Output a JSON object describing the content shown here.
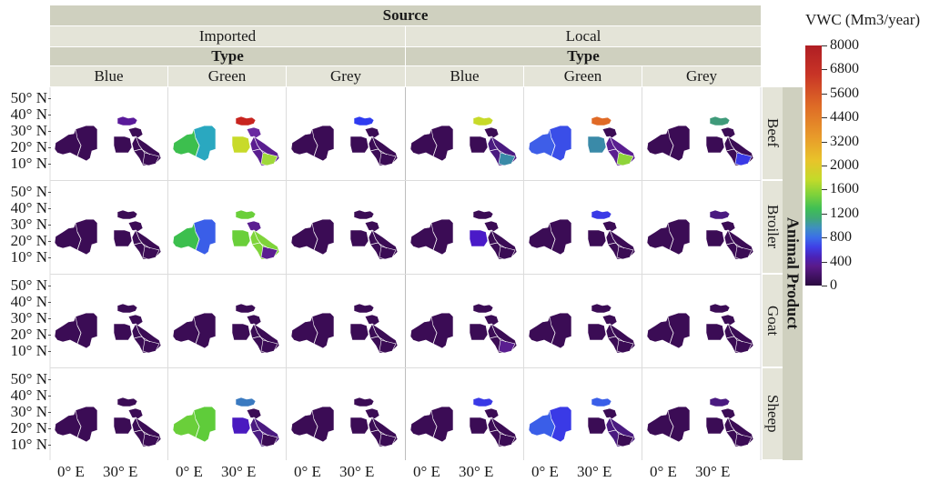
{
  "chart_data": {
    "type": "heatmap",
    "header_source_label": "Source",
    "source_groups": [
      "Imported",
      "Local"
    ],
    "type_label": "Type",
    "type_categories": [
      "Blue",
      "Green",
      "Grey"
    ],
    "row_group_label": "Animal Product",
    "rows": [
      "Beef",
      "Broiler",
      "Goat",
      "Sheep"
    ],
    "y_ticks": [
      "50° N",
      "40° N",
      "30° N",
      "20° N",
      "10° N"
    ],
    "x_ticks": [
      "0° E",
      "30° E"
    ],
    "legend_title": "VWC (Mm3/year)",
    "legend_ticks": [
      "8000",
      "6800",
      "5600",
      "4400",
      "3200",
      "2000",
      "1600",
      "1200",
      "800",
      "400",
      "0"
    ],
    "colors": {
      "base": "#3b0c55",
      "scale_min": "#2a0a3f",
      "scale_max": "#b01e24"
    },
    "panels": [
      {
        "source": "Imported",
        "type": "Blue",
        "row": "Beef",
        "west": "#3b0c55",
        "east": "#3b0c55",
        "north": "#5a1a9a",
        "peninsula": "#3b0c55",
        "ne": "#3b0c55",
        "sw": "#3b0c55",
        "se": "#3b0c55"
      },
      {
        "source": "Imported",
        "type": "Green",
        "row": "Beef",
        "west": "#3cbf4e",
        "east": "#2aa8c0",
        "north": "#c8241f",
        "peninsula": "#5a1e90",
        "ne": "#6a2aa0",
        "sw": "#c8da2a",
        "se": "#9fd83a"
      },
      {
        "source": "Imported",
        "type": "Grey",
        "row": "Beef",
        "west": "#3b0c55",
        "east": "#3b0c55",
        "north": "#2f3cf0",
        "peninsula": "#3b0c55",
        "ne": "#3b0c55",
        "sw": "#3b0c55",
        "se": "#3b0c55"
      },
      {
        "source": "Local",
        "type": "Blue",
        "row": "Beef",
        "west": "#3b0c55",
        "east": "#3b0c55",
        "north": "#c8da2a",
        "peninsula": "#4a1a80",
        "ne": "#3b0c55",
        "sw": "#3b0c55",
        "se": "#3a8aa8"
      },
      {
        "source": "Local",
        "type": "Green",
        "row": "Beef",
        "west": "#3e5ee8",
        "east": "#3a4ee8",
        "north": "#e06a26",
        "peninsula": "#5a1e90",
        "ne": "#3b0c55",
        "sw": "#3a8aa8",
        "se": "#8fd43a"
      },
      {
        "source": "Local",
        "type": "Grey",
        "row": "Beef",
        "west": "#3b0c55",
        "east": "#3b0c55",
        "north": "#3f9a7a",
        "peninsula": "#3b0c55",
        "ne": "#3b0c55",
        "sw": "#3b0c55",
        "se": "#3a3ae6"
      },
      {
        "source": "Imported",
        "type": "Blue",
        "row": "Broiler",
        "west": "#3b0c55",
        "east": "#3b0c55",
        "north": "#3b0c55",
        "peninsula": "#3b0c55",
        "ne": "#3b0c55",
        "sw": "#3b0c55",
        "se": "#3b0c55"
      },
      {
        "source": "Imported",
        "type": "Green",
        "row": "Broiler",
        "west": "#3cbf4e",
        "east": "#3a5ee8",
        "north": "#6acf3a",
        "peninsula": "#7fd43a",
        "ne": "#5a1e90",
        "sw": "#6acf3a",
        "se": "#5a1e90"
      },
      {
        "source": "Imported",
        "type": "Grey",
        "row": "Broiler",
        "west": "#3b0c55",
        "east": "#3b0c55",
        "north": "#3b0c55",
        "peninsula": "#3b0c55",
        "ne": "#3b0c55",
        "sw": "#3b0c55",
        "se": "#3b0c55"
      },
      {
        "source": "Local",
        "type": "Blue",
        "row": "Broiler",
        "west": "#3b0c55",
        "east": "#3b0c55",
        "north": "#3b0c55",
        "peninsula": "#3b0c55",
        "ne": "#3b0c55",
        "sw": "#4a1ac8",
        "se": "#3b0c55"
      },
      {
        "source": "Local",
        "type": "Green",
        "row": "Broiler",
        "west": "#3b0c55",
        "east": "#3b0c55",
        "north": "#3a3ae6",
        "peninsula": "#3b0c55",
        "ne": "#3b0c55",
        "sw": "#3b0c55",
        "se": "#3b0c55"
      },
      {
        "source": "Local",
        "type": "Grey",
        "row": "Broiler",
        "west": "#3b0c55",
        "east": "#3b0c55",
        "north": "#4a1a80",
        "peninsula": "#3b0c55",
        "ne": "#3b0c55",
        "sw": "#3b0c55",
        "se": "#3b0c55"
      },
      {
        "source": "Imported",
        "type": "Blue",
        "row": "Goat",
        "west": "#3b0c55",
        "east": "#3b0c55",
        "north": "#3b0c55",
        "peninsula": "#3b0c55",
        "ne": "#3b0c55",
        "sw": "#3b0c55",
        "se": "#3b0c55"
      },
      {
        "source": "Imported",
        "type": "Green",
        "row": "Goat",
        "west": "#3b0c55",
        "east": "#3b0c55",
        "north": "#3b0c55",
        "peninsula": "#3b0c55",
        "ne": "#3b0c55",
        "sw": "#3b0c55",
        "se": "#3b0c55"
      },
      {
        "source": "Imported",
        "type": "Grey",
        "row": "Goat",
        "west": "#3b0c55",
        "east": "#3b0c55",
        "north": "#3b0c55",
        "peninsula": "#3b0c55",
        "ne": "#3b0c55",
        "sw": "#3b0c55",
        "se": "#3b0c55"
      },
      {
        "source": "Local",
        "type": "Blue",
        "row": "Goat",
        "west": "#3b0c55",
        "east": "#3b0c55",
        "north": "#3b0c55",
        "peninsula": "#3b0c55",
        "ne": "#3b0c55",
        "sw": "#3b0c55",
        "se": "#5a1e90"
      },
      {
        "source": "Local",
        "type": "Green",
        "row": "Goat",
        "west": "#3b0c55",
        "east": "#3b0c55",
        "north": "#3b0c55",
        "peninsula": "#3b0c55",
        "ne": "#3b0c55",
        "sw": "#3b0c55",
        "se": "#3b0c55"
      },
      {
        "source": "Local",
        "type": "Grey",
        "row": "Goat",
        "west": "#3b0c55",
        "east": "#3b0c55",
        "north": "#3b0c55",
        "peninsula": "#3b0c55",
        "ne": "#3b0c55",
        "sw": "#3b0c55",
        "se": "#3b0c55"
      },
      {
        "source": "Imported",
        "type": "Blue",
        "row": "Sheep",
        "west": "#3b0c55",
        "east": "#3b0c55",
        "north": "#3b0c55",
        "peninsula": "#3b0c55",
        "ne": "#3b0c55",
        "sw": "#3b0c55",
        "se": "#3b0c55"
      },
      {
        "source": "Imported",
        "type": "Green",
        "row": "Sheep",
        "west": "#6acf3a",
        "east": "#5fcc3a",
        "north": "#3a7ac0",
        "peninsula": "#4a1a80",
        "ne": "#3b0c55",
        "sw": "#4a1ac0",
        "se": "#3b0c55"
      },
      {
        "source": "Imported",
        "type": "Grey",
        "row": "Sheep",
        "west": "#3b0c55",
        "east": "#3b0c55",
        "north": "#3b0c55",
        "peninsula": "#3b0c55",
        "ne": "#3b0c55",
        "sw": "#3b0c55",
        "se": "#3b0c55"
      },
      {
        "source": "Local",
        "type": "Blue",
        "row": "Sheep",
        "west": "#3b0c55",
        "east": "#3b0c55",
        "north": "#3a3ae6",
        "peninsula": "#3b0c55",
        "ne": "#3b0c55",
        "sw": "#3b0c55",
        "se": "#3b0c55"
      },
      {
        "source": "Local",
        "type": "Green",
        "row": "Sheep",
        "west": "#3a5ee8",
        "east": "#3a3ae6",
        "north": "#3a5ee8",
        "peninsula": "#4a1a80",
        "ne": "#3b0c55",
        "sw": "#3b0c55",
        "se": "#3b0c55"
      },
      {
        "source": "Local",
        "type": "Grey",
        "row": "Sheep",
        "west": "#3b0c55",
        "east": "#3b0c55",
        "north": "#4a1a80",
        "peninsula": "#3b0c55",
        "ne": "#3b0c55",
        "sw": "#3b0c55",
        "se": "#3b0c55"
      }
    ]
  }
}
